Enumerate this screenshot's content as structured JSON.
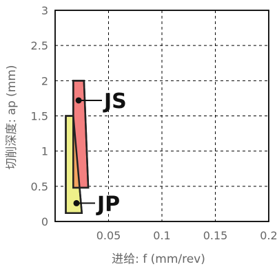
{
  "chart_data": {
    "type": "area",
    "title": "",
    "xlabel": "进给: f (mm/rev)",
    "ylabel": "切削深度: ap (mm)",
    "xlim": [
      0,
      0.2
    ],
    "ylim": [
      0,
      3
    ],
    "x_ticks": [
      "0.05",
      "0.1",
      "0.15",
      "0.2"
    ],
    "y_ticks": [
      "0",
      "0.5",
      "1",
      "1.5",
      "2",
      "2.5",
      "3"
    ],
    "grid": true,
    "grid_style": "dashed",
    "regions": [
      {
        "name": "JP",
        "polygon": [
          [
            0.01,
            1.5
          ],
          [
            0.017,
            1.5
          ],
          [
            0.025,
            0.12
          ],
          [
            0.01,
            0.12
          ]
        ],
        "color": "#eef08a",
        "marker": [
          0.02,
          0.26
        ]
      },
      {
        "name": "JS",
        "polygon": [
          [
            0.017,
            2.0
          ],
          [
            0.027,
            2.0
          ],
          [
            0.031,
            0.48
          ],
          [
            0.017,
            0.48
          ]
        ],
        "color": "#f48080",
        "marker": [
          0.022,
          1.72
        ]
      }
    ],
    "colors": {
      "frame": "#000000",
      "grid": "#000000",
      "overlap": "#f4a460",
      "region_border": "#222222"
    }
  }
}
